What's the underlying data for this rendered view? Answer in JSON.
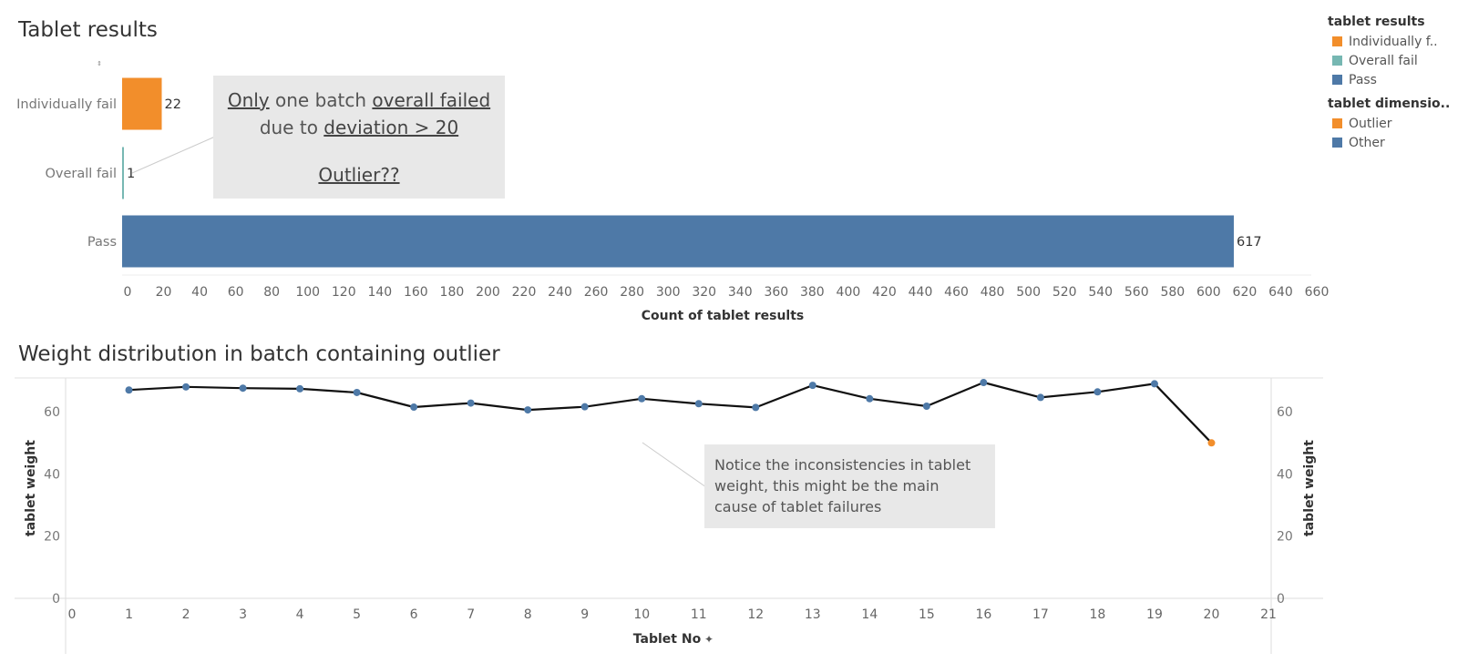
{
  "titles": {
    "top": "Tablet results",
    "bottom": "Weight distribution in batch containing outlier"
  },
  "legend": {
    "group1_title": "tablet results",
    "group1_items": [
      {
        "label": "Individually f..",
        "color": "#F28E2B"
      },
      {
        "label": "Overall fail",
        "color": "#76B7B2"
      },
      {
        "label": "Pass",
        "color": "#4E79A7"
      }
    ],
    "group2_title": "tablet dimensio..",
    "group2_items": [
      {
        "label": "Outlier",
        "color": "#F28E2B"
      },
      {
        "label": "Other",
        "color": "#4E79A7"
      }
    ]
  },
  "annotation1": {
    "w1": "Only",
    "w2": " one batch ",
    "w3": "overall failed",
    "w4": "due to ",
    "w5": "deviation > 20",
    "w6": "Outlier??"
  },
  "annotation2": {
    "text": "Notice the inconsistencies in tablet weight, this might be the main cause of tablet failures"
  },
  "chart_data": [
    {
      "type": "bar",
      "orientation": "horizontal",
      "title": "Tablet results",
      "categories": [
        "Individually fail",
        "Overall fail",
        "Pass"
      ],
      "values": [
        22,
        1,
        617
      ],
      "colors": [
        "#F28E2B",
        "#76B7B2",
        "#4E79A7"
      ],
      "xlabel": "Count of tablet results",
      "xlim": [
        0,
        660
      ],
      "xticks": [
        0,
        20,
        40,
        60,
        80,
        100,
        120,
        140,
        160,
        180,
        200,
        220,
        240,
        260,
        280,
        300,
        320,
        340,
        360,
        380,
        400,
        420,
        440,
        460,
        480,
        500,
        520,
        540,
        560,
        580,
        600,
        620,
        640,
        660
      ]
    },
    {
      "type": "line",
      "title": "Weight distribution in batch containing outlier",
      "x": [
        1,
        2,
        3,
        4,
        5,
        6,
        7,
        8,
        9,
        10,
        11,
        12,
        13,
        14,
        15,
        16,
        17,
        18,
        19,
        20
      ],
      "y": [
        67,
        68,
        67.6,
        67.4,
        66.2,
        61.5,
        62.8,
        60.6,
        61.6,
        64.2,
        62.6,
        61.4,
        68.5,
        64.2,
        61.8,
        69.4,
        64.6,
        66.4,
        69,
        50
      ],
      "point_category": [
        "Other",
        "Other",
        "Other",
        "Other",
        "Other",
        "Other",
        "Other",
        "Other",
        "Other",
        "Other",
        "Other",
        "Other",
        "Other",
        "Other",
        "Other",
        "Other",
        "Other",
        "Other",
        "Other",
        "Outlier"
      ],
      "xlabel": "Tablet No",
      "xlabel_icon": "pin-icon",
      "ylabel": "tablet weight",
      "ylabel_right": "tablet weight",
      "xlim": [
        0,
        21
      ],
      "ylim": [
        0,
        70
      ],
      "xticks": [
        0,
        1,
        2,
        3,
        4,
        5,
        6,
        7,
        8,
        9,
        10,
        11,
        12,
        13,
        14,
        15,
        16,
        17,
        18,
        19,
        20,
        21
      ],
      "yticks": [
        0,
        20,
        40,
        60
      ],
      "line_color": "#111111",
      "colors": {
        "Other": "#4E79A7",
        "Outlier": "#F28E2B"
      }
    }
  ]
}
